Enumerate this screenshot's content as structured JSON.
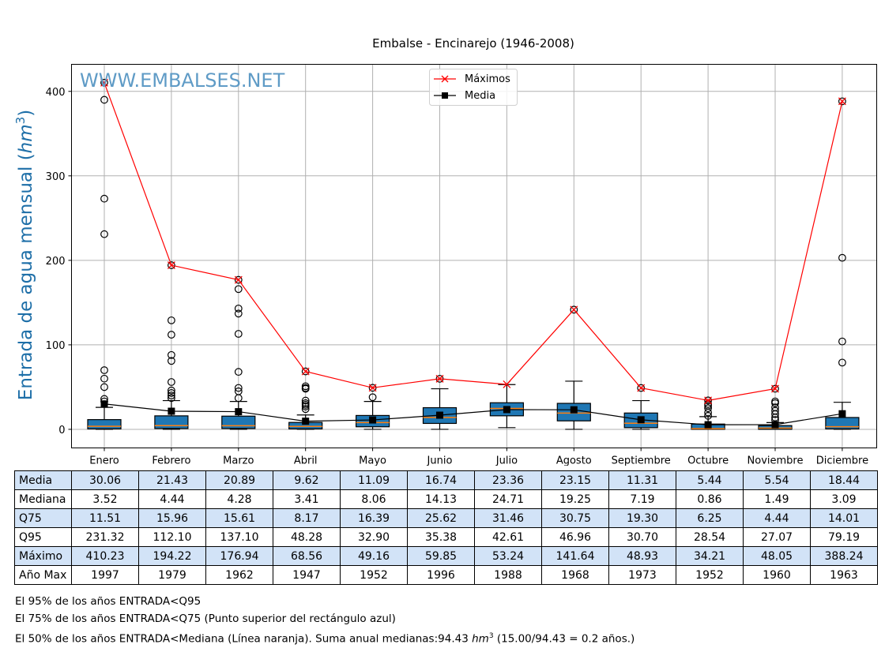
{
  "chart_data": {
    "type": "boxplot",
    "title": "Embalse - Encinarejo (1946-2008)",
    "watermark": "WWW.EMBALSES.NET",
    "ylabel": "Entrada de agua mensual",
    "ylabel_unit_base": "hm",
    "ylabel_unit_exp": "3",
    "ylim": [
      -22,
      432
    ],
    "yticks": [
      0,
      100,
      200,
      300,
      400
    ],
    "grid": true,
    "legend": {
      "position": "top-center",
      "entries": [
        {
          "label": "Máximos",
          "color": "#ff0000",
          "marker": "x"
        },
        {
          "label": "Media",
          "color": "#000000",
          "marker": "square"
        }
      ]
    },
    "categories": [
      "Enero",
      "Febrero",
      "Marzo",
      "Abril",
      "Mayo",
      "Junio",
      "Julio",
      "Agosto",
      "Septiembre",
      "Octubre",
      "Noviembre",
      "Diciembre"
    ],
    "box_color": "#1f77b4",
    "median_color": "#ff7f0e",
    "boxes": [
      {
        "q1": 0.5,
        "median": 3.52,
        "q3": 11.51,
        "whisker_low": 0,
        "whisker_high": 26,
        "fliers": [
          410.23,
          390,
          273,
          231,
          70,
          60,
          50,
          36,
          33
        ]
      },
      {
        "q1": 1.0,
        "median": 4.44,
        "q3": 15.96,
        "whisker_low": 0,
        "whisker_high": 34,
        "fliers": [
          194.22,
          129,
          112,
          88,
          81,
          56,
          46,
          43,
          40,
          37
        ]
      },
      {
        "q1": 1.0,
        "median": 4.28,
        "q3": 15.61,
        "whisker_low": 0,
        "whisker_high": 33,
        "fliers": [
          176.94,
          166,
          143,
          137,
          113,
          68,
          49,
          45,
          37
        ]
      },
      {
        "q1": 0.5,
        "median": 3.41,
        "q3": 8.17,
        "whisker_low": 0,
        "whisker_high": 17,
        "fliers": [
          68.56,
          51,
          49,
          48,
          34,
          31,
          29,
          27,
          24
        ]
      },
      {
        "q1": 3.0,
        "median": 8.06,
        "q3": 16.39,
        "whisker_low": 0,
        "whisker_high": 33,
        "fliers": [
          49.16,
          38
        ]
      },
      {
        "q1": 7.0,
        "median": 14.13,
        "q3": 25.62,
        "whisker_low": 0,
        "whisker_high": 48,
        "fliers": [
          59.85
        ]
      },
      {
        "q1": 16.0,
        "median": 24.71,
        "q3": 31.46,
        "whisker_low": 2,
        "whisker_high": 53,
        "fliers": []
      },
      {
        "q1": 10.0,
        "median": 19.25,
        "q3": 30.75,
        "whisker_low": 0,
        "whisker_high": 57,
        "fliers": [
          141.64
        ]
      },
      {
        "q1": 2.0,
        "median": 7.19,
        "q3": 19.3,
        "whisker_low": 0,
        "whisker_high": 34,
        "fliers": [
          48.93
        ]
      },
      {
        "q1": 0.0,
        "median": 0.86,
        "q3": 6.25,
        "whisker_low": 0,
        "whisker_high": 15,
        "fliers": [
          34.21,
          30,
          28,
          25,
          20,
          16
        ]
      },
      {
        "q1": 0.0,
        "median": 1.49,
        "q3": 4.44,
        "whisker_low": 0,
        "whisker_high": 8,
        "fliers": [
          48.05,
          33,
          31,
          26,
          22,
          18,
          14,
          11
        ]
      },
      {
        "q1": 0.5,
        "median": 3.09,
        "q3": 14.01,
        "whisker_low": 0,
        "whisker_high": 32,
        "fliers": [
          388.24,
          203,
          104,
          79
        ]
      }
    ],
    "series": [
      {
        "name": "Máximos",
        "values": [
          410.23,
          194.22,
          176.94,
          68.56,
          49.16,
          59.85,
          53.24,
          141.64,
          48.93,
          34.21,
          48.05,
          388.24
        ]
      },
      {
        "name": "Media",
        "values": [
          30.06,
          21.43,
          20.89,
          9.62,
          11.09,
          16.74,
          23.36,
          23.15,
          11.31,
          5.44,
          5.54,
          18.44
        ]
      }
    ]
  },
  "table": {
    "rows": [
      {
        "label": "Media",
        "values": [
          "30.06",
          "21.43",
          "20.89",
          "9.62",
          "11.09",
          "16.74",
          "23.36",
          "23.15",
          "11.31",
          "5.44",
          "5.54",
          "18.44"
        ]
      },
      {
        "label": "Mediana",
        "values": [
          "3.52",
          "4.44",
          "4.28",
          "3.41",
          "8.06",
          "14.13",
          "24.71",
          "19.25",
          "7.19",
          "0.86",
          "1.49",
          "3.09"
        ]
      },
      {
        "label": "Q75",
        "values": [
          "11.51",
          "15.96",
          "15.61",
          "8.17",
          "16.39",
          "25.62",
          "31.46",
          "30.75",
          "19.30",
          "6.25",
          "4.44",
          "14.01"
        ]
      },
      {
        "label": "Q95",
        "values": [
          "231.32",
          "112.10",
          "137.10",
          "48.28",
          "32.90",
          "35.38",
          "42.61",
          "46.96",
          "30.70",
          "28.54",
          "27.07",
          "79.19"
        ]
      },
      {
        "label": "Máximo",
        "values": [
          "410.23",
          "194.22",
          "176.94",
          "68.56",
          "49.16",
          "59.85",
          "53.24",
          "141.64",
          "48.93",
          "34.21",
          "48.05",
          "388.24"
        ]
      },
      {
        "label": "Año Max",
        "values": [
          "1997",
          "1979",
          "1962",
          "1947",
          "1952",
          "1996",
          "1988",
          "1968",
          "1973",
          "1952",
          "1960",
          "1963"
        ]
      }
    ]
  },
  "notes": {
    "line1": "El 95% de los años ENTRADA<Q95",
    "line2": "El 75% de los años ENTRADA<Q75 (Punto superior del rectángulo azul)",
    "line3_prefix": "El 50% de los años ENTRADA<Mediana (Línea naranja). Suma anual medianas:94.43 ",
    "line3_unit_base": "hm",
    "line3_unit_exp": "3",
    "line3_suffix": " (15.00/94.43 = 0.2 años.)"
  }
}
